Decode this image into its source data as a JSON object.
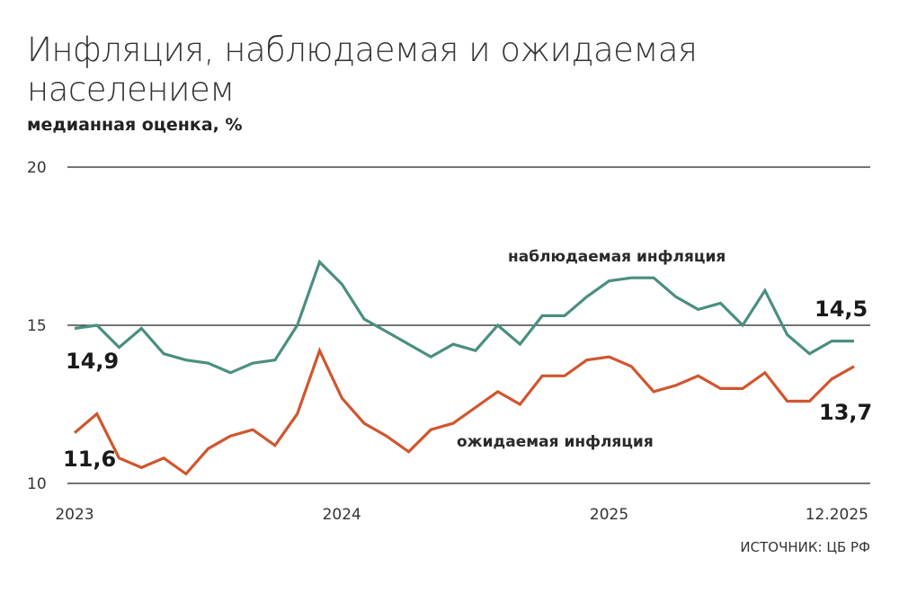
{
  "title": "Инфляция, наблюдаемая и ожидаемая населением",
  "subtitle": "медианная оценка, %",
  "source": "ИСТОЧНИК: ЦБ РФ",
  "chart_data": {
    "type": "line",
    "title": "Инфляция, наблюдаемая и ожидаемая населением",
    "ylabel": "медианная оценка, %",
    "ylim": [
      10,
      20
    ],
    "yticks": [
      "10",
      "15",
      "20"
    ],
    "grid": true,
    "xtick_labels": [
      {
        "label": "2023",
        "index": 0
      },
      {
        "label": "2024",
        "index": 12
      },
      {
        "label": "2025",
        "index": 24
      },
      {
        "label": "12.2025",
        "index": 35
      }
    ],
    "x": [
      "01.2023",
      "02.2023",
      "03.2023",
      "04.2023",
      "05.2023",
      "06.2023",
      "07.2023",
      "08.2023",
      "09.2023",
      "10.2023",
      "11.2023",
      "12.2023",
      "01.2024",
      "02.2024",
      "03.2024",
      "04.2024",
      "05.2024",
      "06.2024",
      "07.2024",
      "08.2024",
      "09.2024",
      "10.2024",
      "11.2024",
      "12.2024",
      "01.2025",
      "02.2025",
      "03.2025",
      "04.2025",
      "05.2025",
      "06.2025",
      "07.2025",
      "08.2025",
      "09.2025",
      "10.2025",
      "11.2025",
      "12.2025"
    ],
    "series": [
      {
        "name": "наблюдаемая инфляция",
        "color": "#4a8f80",
        "values": [
          14.9,
          15.0,
          14.3,
          14.9,
          14.1,
          13.9,
          13.8,
          13.5,
          13.8,
          13.9,
          15.0,
          17.0,
          16.3,
          15.2,
          14.8,
          14.4,
          14.0,
          14.4,
          14.2,
          15.0,
          14.4,
          15.3,
          15.3,
          15.9,
          16.4,
          16.5,
          16.5,
          15.9,
          15.5,
          15.7,
          15.0,
          16.1,
          14.7,
          14.1,
          14.5,
          14.5
        ],
        "first_label": "14,9",
        "last_label": "14,5"
      },
      {
        "name": "ожидаемая инфляция",
        "color": "#d0562f",
        "values": [
          11.6,
          12.2,
          10.8,
          10.5,
          10.8,
          10.3,
          11.1,
          11.5,
          11.7,
          11.2,
          12.2,
          14.2,
          12.7,
          11.9,
          11.5,
          11.0,
          11.7,
          11.9,
          12.4,
          12.9,
          12.5,
          13.4,
          13.4,
          13.9,
          14.0,
          13.7,
          12.9,
          13.1,
          13.4,
          13.0,
          13.0,
          13.5,
          12.6,
          12.6,
          13.3,
          13.7
        ],
        "first_label": "11,6",
        "last_label": "13,7"
      }
    ]
  }
}
